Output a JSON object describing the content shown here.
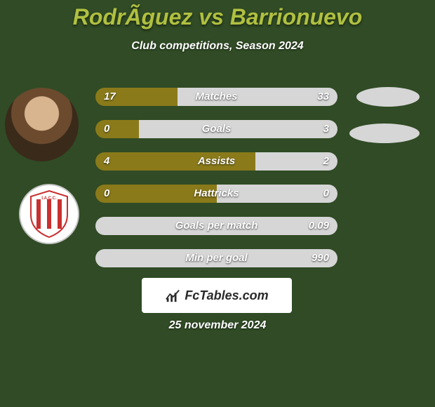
{
  "colors": {
    "background": "#304b25",
    "title": "#b0c040",
    "subtitle": "#ffffff",
    "bar_left": "#8a7a1a",
    "bar_right": "#d6d6d6",
    "bar_text": "#ffffff",
    "avatar_right": "#d6d6d6",
    "footer_bg": "#ffffff",
    "footer_text": "#2a2a2a",
    "date_text": "#ffffff"
  },
  "title": "RodrÃ­guez vs Barrionuevo",
  "subtitle": "Club competitions, Season 2024",
  "bars": [
    {
      "label": "Matches",
      "left": "17",
      "right": "33",
      "left_pct": 34,
      "right_pct": 66
    },
    {
      "label": "Goals",
      "left": "0",
      "right": "3",
      "left_pct": 18,
      "right_pct": 82
    },
    {
      "label": "Assists",
      "left": "4",
      "right": "2",
      "left_pct": 66,
      "right_pct": 34
    },
    {
      "label": "Hattricks",
      "left": "0",
      "right": "0",
      "left_pct": 50,
      "right_pct": 50
    },
    {
      "label": "Goals per match",
      "left": "",
      "right": "0.09",
      "left_pct": 0,
      "right_pct": 100
    },
    {
      "label": "Min per goal",
      "left": "",
      "right": "990",
      "left_pct": 0,
      "right_pct": 100
    }
  ],
  "footer_brand": "FcTables.com",
  "footer_date": "25 november 2024"
}
